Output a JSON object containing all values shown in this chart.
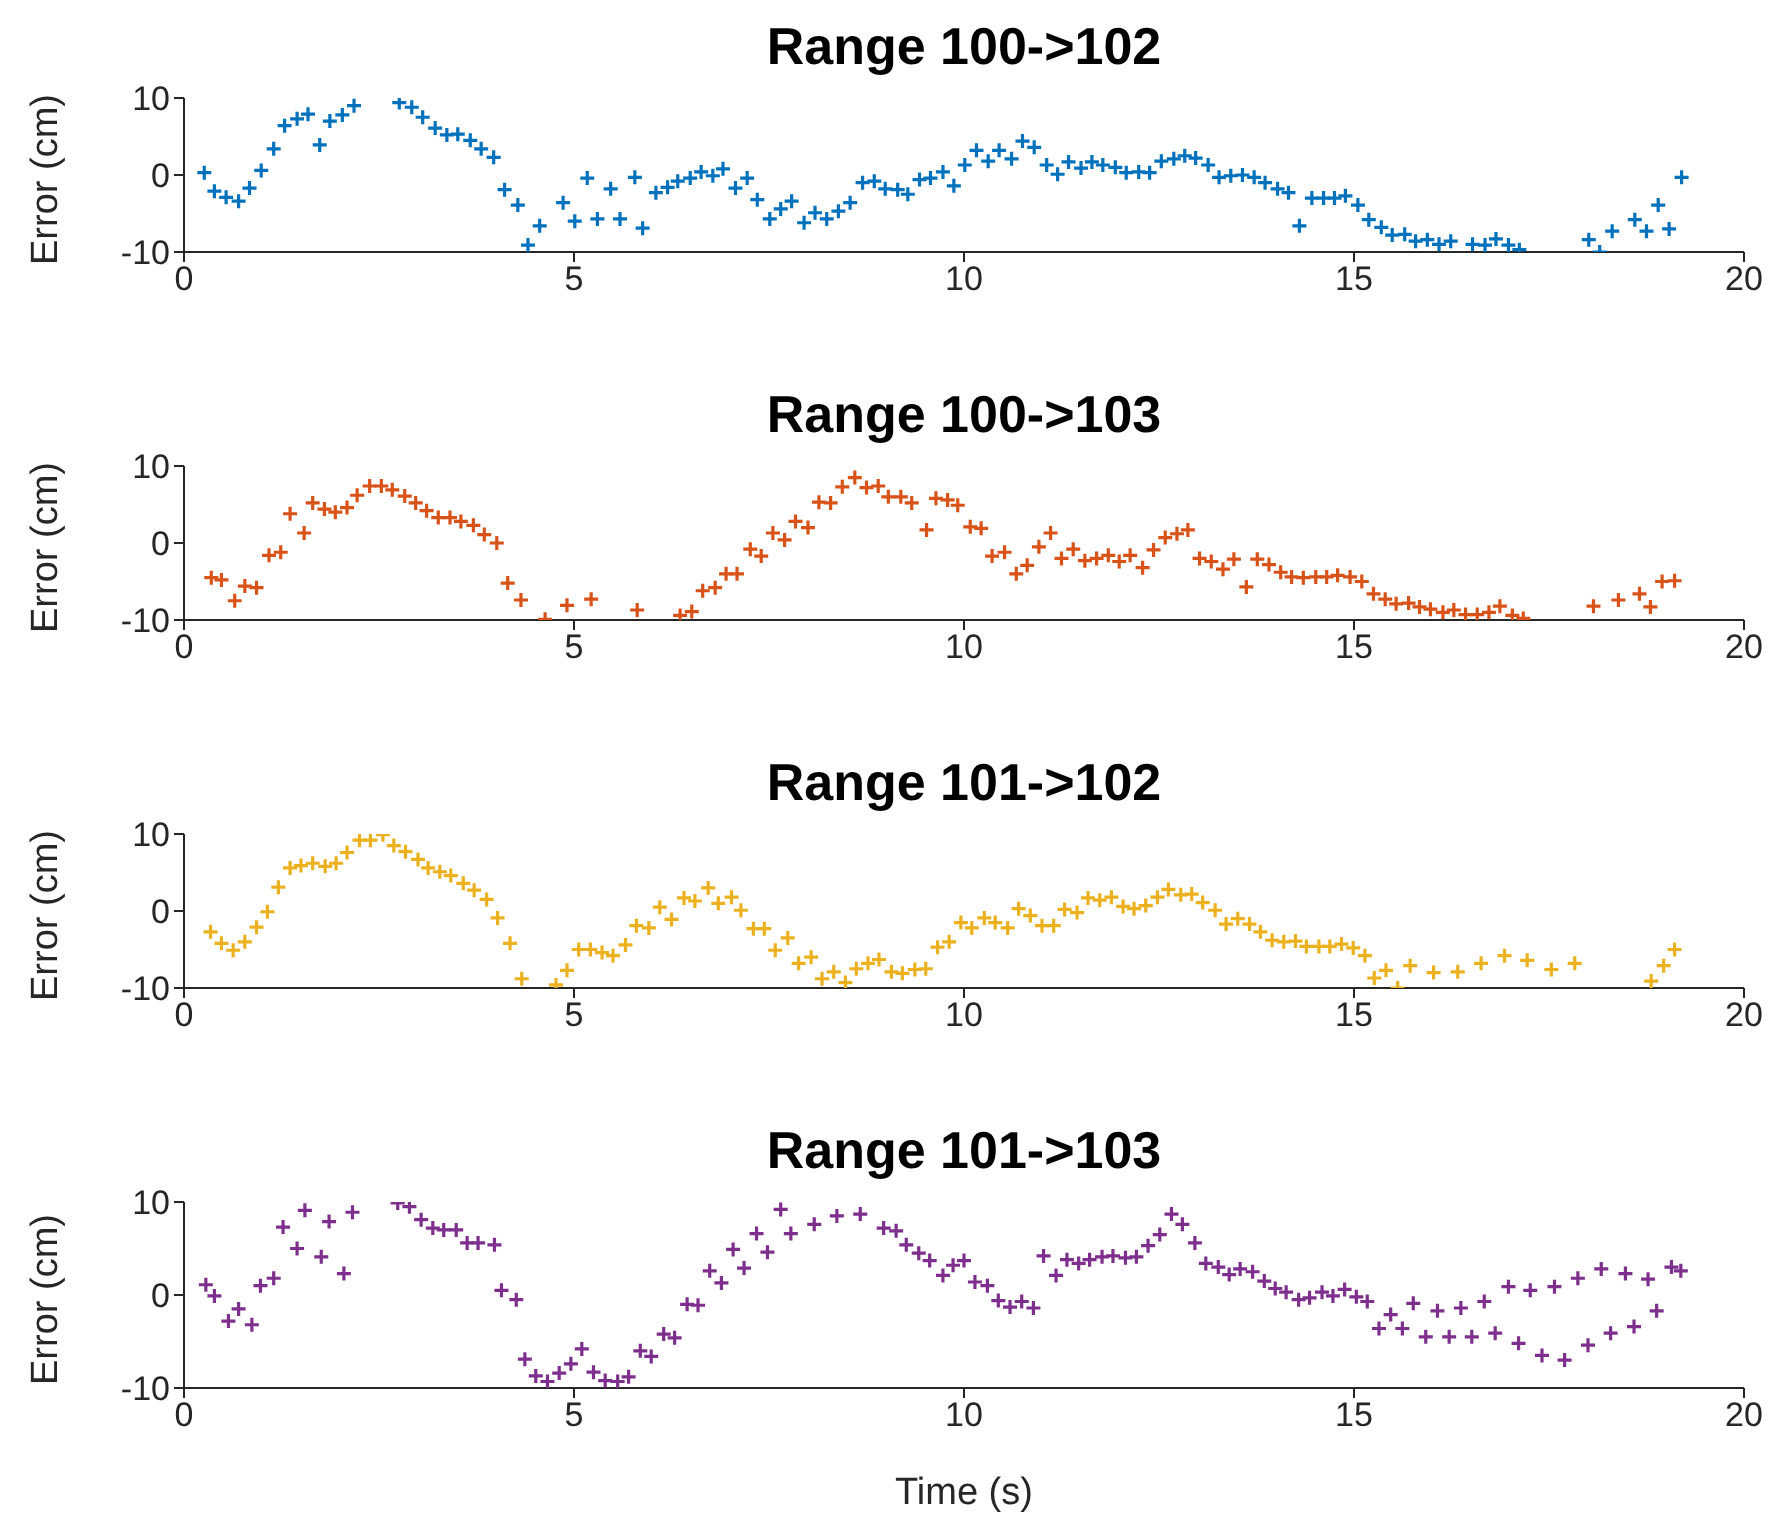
{
  "chart_data": [
    {
      "type": "scatter",
      "title": "Range 100->102",
      "ylabel": "Error (cm)",
      "marker": "cross",
      "grid": false,
      "legend": false,
      "xlim": [
        0,
        20
      ],
      "xticks": [
        0,
        5,
        10,
        15,
        20
      ],
      "ylim": [
        -10,
        10
      ],
      "yticks": [
        -10,
        0,
        10
      ],
      "series": [
        {
          "color": "#0072bd",
          "x": [
            0.26,
            0.39,
            0.54,
            0.7,
            0.84,
            0.99,
            1.15,
            1.29,
            1.45,
            1.59,
            1.74,
            1.87,
            2.03,
            2.18,
            2.76,
            2.92,
            3.06,
            3.22,
            3.37,
            3.51,
            3.67,
            3.81,
            3.97,
            4.11,
            4.28,
            4.41,
            4.56,
            4.86,
            5.01,
            5.17,
            5.3,
            5.47,
            5.59,
            5.78,
            5.88,
            6.05,
            6.2,
            6.33,
            6.49,
            6.63,
            6.78,
            6.91,
            7.07,
            7.22,
            7.35,
            7.51,
            7.65,
            7.79,
            7.95,
            8.09,
            8.24,
            8.39,
            8.54,
            8.7,
            8.85,
            8.99,
            9.15,
            9.28,
            9.43,
            9.57,
            9.73,
            9.87,
            10.01,
            10.16,
            10.31,
            10.45,
            10.61,
            10.75,
            10.9,
            11.06,
            11.2,
            11.34,
            11.5,
            11.64,
            11.78,
            11.94,
            12.08,
            12.24,
            12.38,
            12.53,
            12.69,
            12.83,
            12.97,
            13.13,
            13.27,
            13.42,
            13.57,
            13.72,
            13.86,
            14.02,
            14.16,
            14.3,
            14.46,
            14.61,
            14.75,
            14.89,
            15.05,
            15.19,
            15.35,
            15.49,
            15.65,
            15.79,
            15.94,
            16.09,
            16.24,
            16.52,
            16.68,
            16.82,
            16.98,
            17.12,
            18.01,
            18.15,
            18.31,
            18.6,
            18.75,
            18.9,
            19.04,
            19.2
          ],
          "values": [
            0.3,
            -2.1,
            -2.9,
            -3.4,
            -1.7,
            0.6,
            3.4,
            6.4,
            7.3,
            7.9,
            3.9,
            7.0,
            7.8,
            9.0,
            9.4,
            8.8,
            7.5,
            6.1,
            5.2,
            5.3,
            4.5,
            3.4,
            2.3,
            -1.9,
            -3.9,
            -9.1,
            -6.6,
            -3.6,
            -6.0,
            -0.4,
            -5.7,
            -1.8,
            -5.7,
            -0.3,
            -6.9,
            -2.3,
            -1.6,
            -0.8,
            -0.4,
            0.4,
            -0.1,
            0.8,
            -1.7,
            -0.4,
            -3.2,
            -5.7,
            -4.4,
            -3.4,
            -6.2,
            -4.9,
            -5.7,
            -4.7,
            -3.6,
            -1.0,
            -0.8,
            -1.8,
            -1.9,
            -2.5,
            -0.6,
            -0.4,
            0.4,
            -1.4,
            1.3,
            3.2,
            1.8,
            3.2,
            2.1,
            4.4,
            3.6,
            1.3,
            0.1,
            1.7,
            0.9,
            1.7,
            1.3,
            1.0,
            0.3,
            0.4,
            0.3,
            1.8,
            2.1,
            2.5,
            2.2,
            1.3,
            -0.3,
            -0.1,
            0.0,
            -0.3,
            -1.0,
            -1.8,
            -2.3,
            -6.6,
            -3.0,
            -3.0,
            -3.0,
            -2.7,
            -3.9,
            -5.8,
            -6.8,
            -7.8,
            -7.7,
            -8.6,
            -8.4,
            -9.0,
            -8.6,
            -9.0,
            -9.1,
            -8.3,
            -9.1,
            -9.7,
            -8.4,
            -10.0,
            -7.3,
            -5.8,
            -7.3,
            -3.9,
            -7.0,
            -0.3
          ]
        }
      ]
    },
    {
      "type": "scatter",
      "title": "Range 100->103",
      "ylabel": "Error (cm)",
      "marker": "cross",
      "grid": false,
      "legend": false,
      "xlim": [
        0,
        20
      ],
      "xticks": [
        0,
        5,
        10,
        15,
        20
      ],
      "ylim": [
        -10,
        10
      ],
      "yticks": [
        -10,
        0,
        10
      ],
      "series": [
        {
          "color": "#d95319",
          "x": [
            0.35,
            0.48,
            0.65,
            0.78,
            0.93,
            1.09,
            1.24,
            1.36,
            1.54,
            1.65,
            1.8,
            1.94,
            2.09,
            2.22,
            2.38,
            2.53,
            2.67,
            2.83,
            2.97,
            3.11,
            3.26,
            3.41,
            3.55,
            3.71,
            3.85,
            4.01,
            4.15,
            4.32,
            4.63,
            4.91,
            5.22,
            5.81,
            6.36,
            6.51,
            6.65,
            6.81,
            6.95,
            7.09,
            7.26,
            7.4,
            7.55,
            7.7,
            7.84,
            8.0,
            8.14,
            8.29,
            8.44,
            8.6,
            8.75,
            8.9,
            9.03,
            9.19,
            9.33,
            9.52,
            9.64,
            9.79,
            9.92,
            10.08,
            10.22,
            10.36,
            10.52,
            10.67,
            10.81,
            10.96,
            11.11,
            11.25,
            11.4,
            11.55,
            11.7,
            11.85,
            11.99,
            12.13,
            12.29,
            12.43,
            12.58,
            12.73,
            12.87,
            13.02,
            13.17,
            13.32,
            13.46,
            13.62,
            13.76,
            13.91,
            14.06,
            14.2,
            14.35,
            14.51,
            14.65,
            14.79,
            14.95,
            15.1,
            15.25,
            15.4,
            15.54,
            15.7,
            15.84,
            15.98,
            16.14,
            16.28,
            16.43,
            16.58,
            16.73,
            16.87,
            17.03,
            17.17,
            18.07,
            18.39,
            18.66,
            18.8,
            18.95,
            19.11
          ],
          "values": [
            -4.5,
            -4.8,
            -7.5,
            -5.6,
            -5.8,
            -1.6,
            -1.2,
            3.8,
            1.3,
            5.2,
            4.4,
            4.0,
            4.6,
            6.2,
            7.4,
            7.4,
            6.9,
            6.1,
            5.2,
            4.2,
            3.3,
            3.3,
            2.8,
            2.3,
            1.1,
            0.0,
            -5.2,
            -7.4,
            -9.9,
            -8.1,
            -7.3,
            -8.7,
            -9.4,
            -8.9,
            -6.2,
            -5.8,
            -4.0,
            -4.0,
            -0.8,
            -1.7,
            1.3,
            0.4,
            2.8,
            2.0,
            5.3,
            5.2,
            7.3,
            8.5,
            7.2,
            7.4,
            6.0,
            6.0,
            5.2,
            1.7,
            5.8,
            5.6,
            4.9,
            2.1,
            1.9,
            -1.7,
            -1.2,
            -4.0,
            -2.9,
            -0.5,
            1.3,
            -2.0,
            -0.8,
            -2.3,
            -2.0,
            -1.6,
            -2.4,
            -1.6,
            -3.2,
            -0.9,
            0.7,
            1.2,
            1.7,
            -2.0,
            -2.4,
            -3.4,
            -2.1,
            -5.7,
            -2.1,
            -2.8,
            -3.8,
            -4.4,
            -4.5,
            -4.4,
            -4.4,
            -4.2,
            -4.4,
            -5.0,
            -6.6,
            -7.3,
            -7.9,
            -7.8,
            -8.3,
            -8.6,
            -9.0,
            -8.7,
            -9.3,
            -9.3,
            -9.0,
            -8.2,
            -9.4,
            -9.8,
            -8.2,
            -7.4,
            -6.6,
            -8.3,
            -5.0,
            -4.9
          ]
        }
      ]
    },
    {
      "type": "scatter",
      "title": "Range 101->102",
      "ylabel": "Error (cm)",
      "marker": "cross",
      "grid": false,
      "legend": false,
      "xlim": [
        0,
        20
      ],
      "xticks": [
        0,
        5,
        10,
        15,
        20
      ],
      "ylim": [
        -10,
        10
      ],
      "yticks": [
        -10,
        0,
        10
      ],
      "series": [
        {
          "color": "#edb120",
          "x": [
            0.34,
            0.48,
            0.63,
            0.78,
            0.93,
            1.07,
            1.21,
            1.36,
            1.5,
            1.65,
            1.81,
            1.95,
            2.09,
            2.25,
            2.39,
            2.55,
            2.69,
            2.84,
            3.0,
            3.13,
            3.28,
            3.42,
            3.58,
            3.72,
            3.88,
            4.02,
            4.18,
            4.33,
            4.77,
            4.91,
            5.06,
            5.21,
            5.36,
            5.5,
            5.66,
            5.8,
            5.96,
            6.1,
            6.25,
            6.41,
            6.55,
            6.72,
            6.85,
            7.02,
            7.14,
            7.3,
            7.44,
            7.58,
            7.74,
            7.88,
            8.04,
            8.18,
            8.33,
            8.48,
            8.62,
            8.77,
            8.91,
            9.07,
            9.21,
            9.37,
            9.51,
            9.66,
            9.81,
            9.96,
            10.1,
            10.26,
            10.4,
            10.56,
            10.7,
            10.85,
            11.0,
            11.15,
            11.29,
            11.45,
            11.59,
            11.74,
            11.89,
            12.04,
            12.18,
            12.33,
            12.48,
            12.62,
            12.78,
            12.92,
            13.06,
            13.22,
            13.36,
            13.51,
            13.66,
            13.8,
            13.95,
            14.1,
            14.25,
            14.39,
            14.55,
            14.69,
            14.84,
            14.99,
            15.14,
            15.26,
            15.41,
            15.56,
            15.72,
            16.02,
            16.33,
            16.63,
            16.93,
            17.22,
            17.53,
            17.83,
            18.81,
            18.97,
            19.11
          ],
          "values": [
            -2.7,
            -4.2,
            -5.1,
            -4.0,
            -2.1,
            -0.1,
            3.1,
            5.6,
            5.9,
            6.2,
            5.8,
            6.2,
            7.6,
            9.2,
            9.2,
            9.9,
            8.5,
            7.7,
            6.7,
            5.6,
            5.1,
            4.6,
            3.6,
            2.7,
            1.5,
            -0.9,
            -4.2,
            -8.8,
            -9.6,
            -7.7,
            -5.0,
            -5.0,
            -5.4,
            -5.8,
            -4.4,
            -1.9,
            -2.2,
            0.5,
            -1.1,
            1.7,
            1.3,
            3.0,
            1.0,
            1.8,
            0.1,
            -2.3,
            -2.3,
            -5.1,
            -3.5,
            -6.8,
            -6.0,
            -8.8,
            -7.9,
            -9.3,
            -7.5,
            -6.8,
            -6.3,
            -7.9,
            -8.1,
            -7.6,
            -7.5,
            -4.7,
            -4.0,
            -1.5,
            -2.2,
            -0.9,
            -1.5,
            -2.2,
            0.3,
            -0.6,
            -1.9,
            -1.9,
            0.2,
            -0.2,
            1.7,
            1.4,
            1.8,
            0.6,
            0.3,
            0.7,
            1.8,
            2.8,
            2.1,
            2.2,
            1.1,
            0.1,
            -1.7,
            -1.0,
            -1.7,
            -2.7,
            -3.8,
            -4.0,
            -3.9,
            -4.6,
            -4.6,
            -4.6,
            -4.3,
            -4.8,
            -5.8,
            -8.7,
            -7.7,
            -10.0,
            -7.1,
            -8.0,
            -7.9,
            -6.8,
            -5.8,
            -6.4,
            -7.6,
            -6.8,
            -9.1,
            -7.1,
            -5.0
          ]
        }
      ]
    },
    {
      "type": "scatter",
      "title": "Range 101->103",
      "xlabel": "Time (s)",
      "ylabel": "Error (cm)",
      "marker": "cross",
      "grid": false,
      "legend": false,
      "xlim": [
        0,
        20
      ],
      "xticks": [
        0,
        5,
        10,
        15,
        20
      ],
      "ylim": [
        -10,
        10
      ],
      "yticks": [
        -10,
        0,
        10
      ],
      "series": [
        {
          "color": "#7e2f8e",
          "x": [
            0.28,
            0.39,
            0.57,
            0.7,
            0.87,
            0.98,
            1.15,
            1.27,
            1.45,
            1.55,
            1.76,
            1.86,
            2.05,
            2.16,
            2.74,
            2.89,
            3.04,
            3.19,
            3.33,
            3.49,
            3.63,
            3.77,
            3.98,
            4.07,
            4.26,
            4.37,
            4.51,
            4.66,
            4.81,
            4.96,
            5.1,
            5.25,
            5.4,
            5.56,
            5.7,
            5.85,
            5.99,
            6.15,
            6.29,
            6.45,
            6.59,
            6.74,
            6.89,
            7.04,
            7.18,
            7.34,
            7.48,
            7.65,
            7.78,
            8.08,
            8.37,
            8.67,
            8.97,
            9.13,
            9.26,
            9.42,
            9.56,
            9.73,
            9.86,
            10.0,
            10.14,
            10.3,
            10.44,
            10.59,
            10.74,
            10.89,
            11.02,
            11.18,
            11.32,
            11.47,
            11.61,
            11.77,
            11.91,
            12.07,
            12.21,
            12.36,
            12.51,
            12.66,
            12.8,
            12.96,
            13.1,
            13.26,
            13.4,
            13.54,
            13.7,
            13.85,
            13.99,
            14.13,
            14.29,
            14.43,
            14.59,
            14.73,
            14.88,
            15.03,
            15.17,
            15.32,
            15.47,
            15.62,
            15.76,
            15.92,
            16.07,
            16.22,
            16.37,
            16.51,
            16.67,
            16.81,
            16.98,
            17.11,
            17.26,
            17.41,
            17.57,
            17.7,
            17.87,
            18.0,
            18.17,
            18.29,
            18.48,
            18.59,
            18.77,
            18.88,
            19.07,
            19.19
          ],
          "values": [
            1.1,
            -0.1,
            -2.8,
            -1.5,
            -3.2,
            1.0,
            1.8,
            7.3,
            5.0,
            9.1,
            4.1,
            7.9,
            2.3,
            8.9,
            9.9,
            9.5,
            8.1,
            7.2,
            7.0,
            7.0,
            5.6,
            5.6,
            5.4,
            0.5,
            -0.5,
            -6.9,
            -8.7,
            -9.3,
            -8.4,
            -7.4,
            -5.8,
            -8.3,
            -9.2,
            -9.3,
            -8.8,
            -6.0,
            -6.6,
            -4.2,
            -4.6,
            -1.0,
            -1.1,
            2.6,
            1.3,
            4.9,
            2.9,
            6.6,
            4.6,
            9.2,
            6.6,
            7.6,
            8.5,
            8.7,
            7.2,
            6.9,
            5.4,
            4.5,
            3.7,
            2.1,
            3.2,
            3.7,
            1.4,
            1.0,
            -0.6,
            -1.3,
            -0.7,
            -1.4,
            4.2,
            2.1,
            3.8,
            3.4,
            3.8,
            4.1,
            4.2,
            4.0,
            4.1,
            5.3,
            6.5,
            8.7,
            7.6,
            5.6,
            3.4,
            3.0,
            2.2,
            2.8,
            2.5,
            1.5,
            0.7,
            0.3,
            -0.5,
            -0.3,
            0.3,
            -0.1,
            0.6,
            -0.2,
            -0.7,
            -3.6,
            -2.1,
            -3.6,
            -0.9,
            -4.5,
            -1.7,
            -4.5,
            -1.4,
            -4.5,
            -0.7,
            -4.1,
            0.9,
            -5.2,
            0.5,
            -6.5,
            0.9,
            -7.0,
            1.8,
            -5.4,
            2.8,
            -4.1,
            2.3,
            -3.4,
            1.7,
            -1.7,
            3.0,
            2.6
          ]
        }
      ]
    }
  ]
}
